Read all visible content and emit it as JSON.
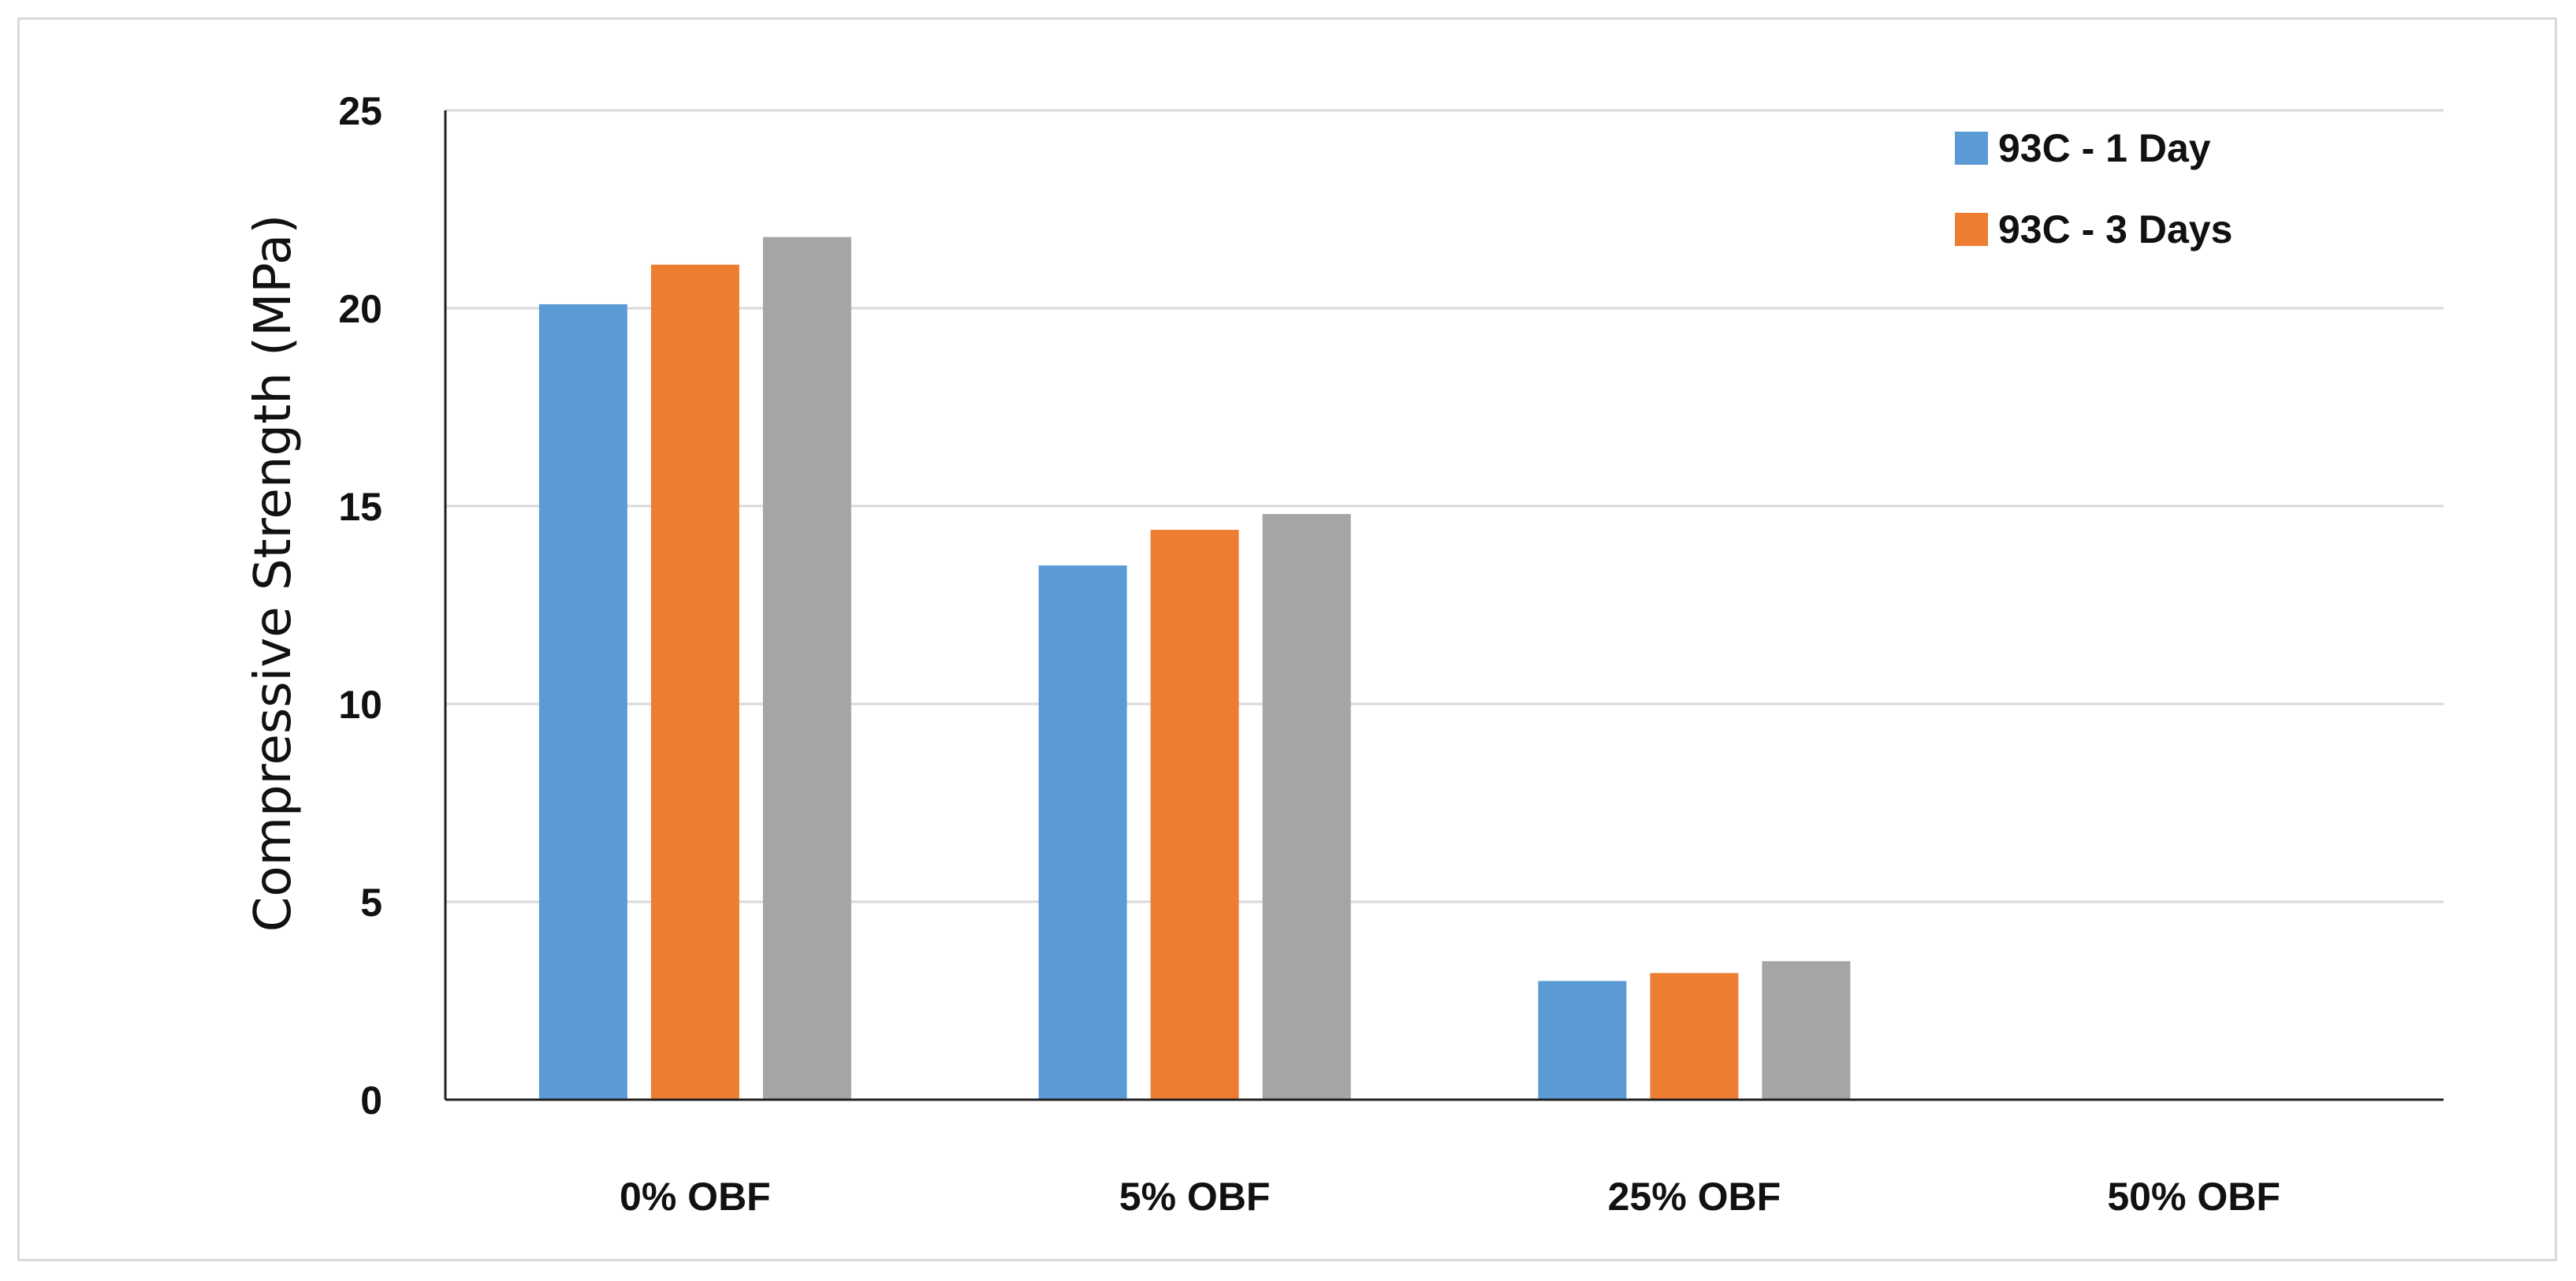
{
  "chart_data": {
    "type": "bar",
    "categories": [
      "0% OBF",
      "5% OBF",
      "25% OBF",
      "50% OBF"
    ],
    "series": [
      {
        "name": "93C - 1 Day",
        "values": [
          20.1,
          13.5,
          3.0,
          0
        ],
        "color": "#5b9bd5"
      },
      {
        "name": "93C - 3 Days",
        "values": [
          21.1,
          14.4,
          3.2,
          0
        ],
        "color": "#ed7d31"
      },
      {
        "values": [
          21.8,
          14.8,
          3.5,
          0
        ],
        "color": "#a5a5a5"
      }
    ],
    "ylabel": "Compressive Strength (MPa)",
    "xlabel": "",
    "title": "",
    "ylim": [
      0,
      25
    ],
    "yticks": [
      0,
      5,
      10,
      15,
      20,
      25
    ],
    "grid": true,
    "legend_position": "top-right"
  }
}
